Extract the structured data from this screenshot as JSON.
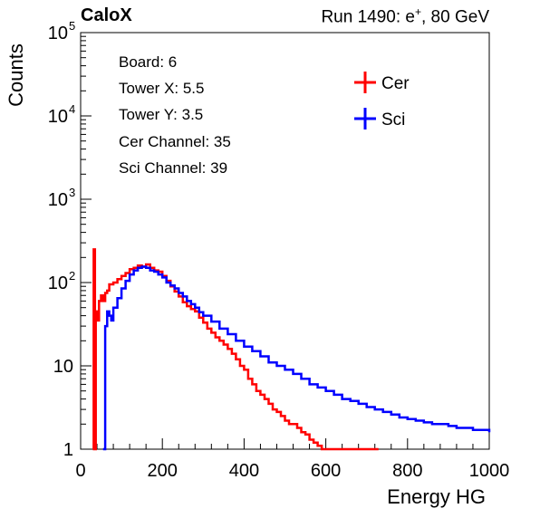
{
  "header": {
    "experiment": "CaloX",
    "run_text_prefix": "Run 1490: e",
    "run_text_sup": "+",
    "run_text_suffix": ", 80 GeV"
  },
  "info": {
    "board": "Board: 6",
    "tower_x": "Tower X: 5.5",
    "tower_y": "Tower Y: 3.5",
    "cer_channel": "Cer Channel: 35",
    "sci_channel": "Sci Channel: 39"
  },
  "colors": {
    "cer": "#ff0000",
    "sci": "#0000ff"
  },
  "chart_data": {
    "type": "line",
    "style": "histogram-step",
    "xlabel": "Energy HG",
    "ylabel": "Counts",
    "xlim": [
      0,
      1000
    ],
    "ylim": [
      1,
      100000
    ],
    "yscale": "log",
    "x_ticks": [
      "0",
      "200",
      "400",
      "600",
      "800",
      "1000"
    ],
    "y_ticks": [
      {
        "value": 1,
        "label": "1"
      },
      {
        "value": 10,
        "label": "10"
      },
      {
        "value": 100,
        "label": "10",
        "sup": "2"
      },
      {
        "value": 1000,
        "label": "10",
        "sup": "3"
      },
      {
        "value": 10000,
        "label": "10",
        "sup": "4"
      },
      {
        "value": 100000,
        "label": "10",
        "sup": "5"
      }
    ],
    "legend": {
      "placement": "top-right",
      "entries": [
        "Cer",
        "Sci"
      ]
    },
    "series": [
      {
        "name": "Cer",
        "color": "#ff0000",
        "x": [
          30,
          32,
          35,
          37,
          40,
          45,
          50,
          55,
          60,
          65,
          70,
          80,
          90,
          100,
          110,
          120,
          130,
          140,
          150,
          160,
          170,
          180,
          190,
          200,
          210,
          220,
          230,
          240,
          250,
          260,
          270,
          280,
          290,
          300,
          310,
          320,
          330,
          340,
          350,
          360,
          370,
          380,
          390,
          400,
          410,
          420,
          430,
          440,
          450,
          460,
          470,
          480,
          490,
          500,
          510,
          520,
          530,
          540,
          550,
          560,
          570,
          580,
          590,
          600,
          610,
          620,
          630,
          640,
          650,
          660,
          670,
          680,
          700,
          720
        ],
        "y": [
          1,
          250,
          1,
          45,
          35,
          60,
          70,
          60,
          75,
          80,
          95,
          100,
          110,
          120,
          130,
          145,
          150,
          160,
          155,
          165,
          150,
          140,
          135,
          120,
          105,
          90,
          78,
          68,
          58,
          52,
          48,
          45,
          38,
          33,
          28,
          25,
          22,
          20,
          18,
          16,
          14,
          12,
          10,
          9,
          7,
          6,
          5,
          4.5,
          4,
          3.5,
          3,
          2.8,
          2.5,
          2.2,
          2,
          2,
          1.8,
          1.6,
          1.5,
          1.3,
          1.2,
          1.1,
          1,
          1,
          1,
          1,
          1,
          1,
          1,
          1,
          1,
          1,
          1,
          1
        ]
      },
      {
        "name": "Sci",
        "color": "#0000ff",
        "x": [
          55,
          58,
          60,
          65,
          70,
          75,
          80,
          90,
          100,
          110,
          120,
          130,
          140,
          150,
          160,
          170,
          180,
          190,
          200,
          210,
          220,
          230,
          240,
          250,
          260,
          270,
          280,
          290,
          300,
          320,
          340,
          360,
          380,
          400,
          420,
          440,
          460,
          480,
          500,
          520,
          540,
          560,
          580,
          600,
          620,
          640,
          660,
          680,
          700,
          720,
          740,
          760,
          780,
          800,
          820,
          840,
          860,
          880,
          900,
          920,
          940,
          960,
          980,
          1000
        ],
        "y": [
          1,
          1,
          30,
          45,
          40,
          35,
          50,
          65,
          85,
          105,
          125,
          140,
          150,
          155,
          150,
          140,
          135,
          125,
          115,
          100,
          92,
          85,
          75,
          68,
          60,
          55,
          50,
          44,
          40,
          34,
          28,
          24,
          20,
          17,
          15,
          13,
          11,
          10,
          9,
          8,
          7,
          6,
          5.5,
          5,
          4.5,
          4,
          3.8,
          3.5,
          3.2,
          3,
          2.8,
          2.6,
          2.4,
          2.3,
          2.2,
          2.1,
          2,
          2,
          1.9,
          1.8,
          1.8,
          1.7,
          1.7,
          1.6
        ]
      }
    ]
  }
}
